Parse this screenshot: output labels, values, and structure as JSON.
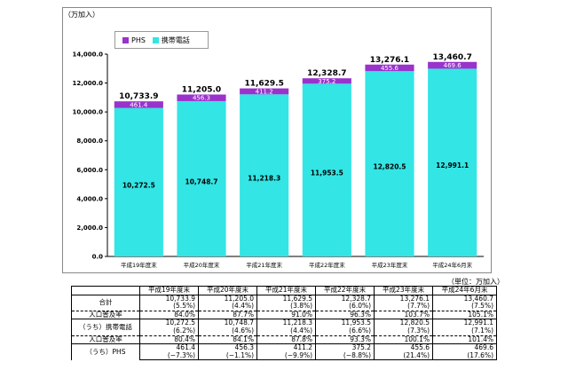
{
  "unit_label": "（万加入）",
  "table_unit_label": "（単位：万加入）",
  "chart_data": {
    "type": "bar",
    "stacked": true,
    "categories": [
      "平成19年度末",
      "平成20年度末",
      "平成21年度末",
      "平成22年度末",
      "平成23年度末",
      "平成24年6月末"
    ],
    "series": [
      {
        "name": "携帯電話",
        "color": "#33e5e5",
        "values": [
          10272.5,
          10748.7,
          11218.3,
          11953.5,
          12820.5,
          12991.1
        ]
      },
      {
        "name": "PHS",
        "color": "#9933cc",
        "values": [
          461.4,
          456.3,
          411.2,
          375.2,
          455.6,
          469.6
        ]
      }
    ],
    "totals": [
      "10,733.9",
      "11,205.0",
      "11,629.5",
      "12,328.7",
      "13,276.1",
      "13,460.7"
    ],
    "mobile_labels": [
      "10,272.5",
      "10,748.7",
      "11,218.3",
      "11,953.5",
      "12,820.5",
      "12,991.1"
    ],
    "phs_labels": [
      "461.4",
      "456.3",
      "411.2",
      "375.2",
      "455.6",
      "469.6"
    ],
    "ylim": [
      0,
      14000
    ],
    "yticks": [
      "0.0",
      "2,000.0",
      "4,000.0",
      "6,000.0",
      "8,000.0",
      "10,000.0",
      "12,000.0",
      "14,000.0"
    ],
    "legend": [
      "PHS",
      "携帯電話"
    ],
    "legend_position": "top-left",
    "grid": false
  },
  "table": {
    "headers": [
      "平成19年度末",
      "平成20年度末",
      "平成21年度末",
      "平成22年度末",
      "平成23年度末",
      "平成24年6月末"
    ],
    "rows": [
      {
        "label": "合計",
        "values": [
          "10,733.9",
          "11,205.0",
          "11,629.5",
          "12,328.7",
          "13,276.1",
          "13,460.7"
        ],
        "sub": [
          "(5.5%)",
          "(4.4%)",
          "(3.8%)",
          "(6.0%)",
          "(7.7%)",
          "(7.5%)"
        ]
      },
      {
        "label": "人口普及率",
        "values": [
          "84.0%",
          "87.7%",
          "91.0%",
          "96.3%",
          "103.7%",
          "105.1%"
        ]
      },
      {
        "label": "（うち）携帯電話",
        "values": [
          "10,272.5",
          "10,748.7",
          "11,218.3",
          "11,953.5",
          "12,820.5",
          "12,991.1"
        ],
        "sub": [
          "(6.2%)",
          "(4.6%)",
          "(4.4%)",
          "(6.6%)",
          "(7.3%)",
          "(7.1%)"
        ]
      },
      {
        "label": "人口普及率",
        "values": [
          "80.4%",
          "84.1%",
          "87.8%",
          "93.3%",
          "100.1%",
          "101.4%"
        ]
      },
      {
        "label": "（うち）PHS",
        "values": [
          "461.4",
          "456.3",
          "411.2",
          "375.2",
          "455.6",
          "469.6"
        ],
        "sub": [
          "(−7.3%)",
          "(−1.1%)",
          "(−9.9%)",
          "(−8.8%)",
          "(21.4%)",
          "(17.6%)"
        ]
      }
    ]
  }
}
